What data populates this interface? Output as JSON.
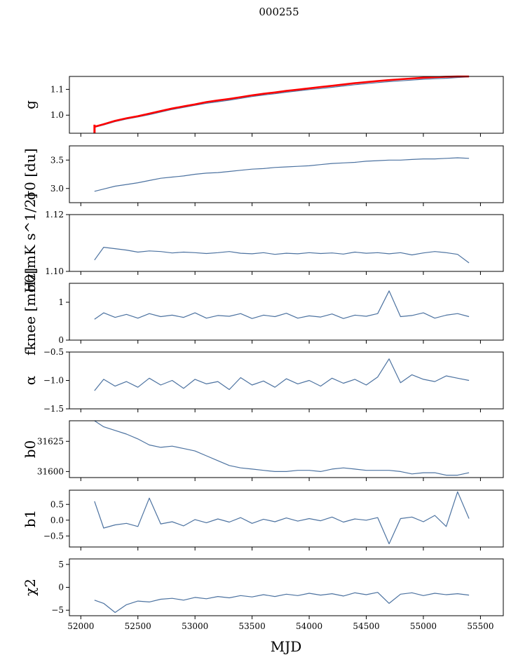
{
  "figure": {
    "suptitle": "000255"
  },
  "colors": {
    "series": "#4c72a0",
    "highlight": "#ff0000",
    "axis": "#000000",
    "background": "#ffffff"
  },
  "chart_data": [
    {
      "type": "line",
      "ylabel": "g",
      "xlim": [
        51900,
        55700
      ],
      "ylim": [
        0.93,
        1.15
      ],
      "yticks": [
        1.0,
        1.1
      ],
      "ytick_labels": [
        "1.0",
        "1.1"
      ],
      "grid": false,
      "x": [
        52120,
        52200,
        52300,
        52400,
        52500,
        52600,
        52700,
        52800,
        52900,
        53000,
        53100,
        53200,
        53300,
        53400,
        53500,
        53600,
        53700,
        53800,
        53900,
        54000,
        54100,
        54200,
        54300,
        54400,
        54500,
        54600,
        54700,
        54800,
        54900,
        55000,
        55100,
        55200,
        55300,
        55400
      ],
      "series": [
        {
          "values": [
            0.953,
            0.962,
            0.975,
            0.985,
            0.993,
            1.002,
            1.012,
            1.022,
            1.03,
            1.038,
            1.046,
            1.052,
            1.058,
            1.065,
            1.072,
            1.078,
            1.083,
            1.089,
            1.094,
            1.099,
            1.103,
            1.108,
            1.113,
            1.118,
            1.122,
            1.126,
            1.13,
            1.133,
            1.136,
            1.139,
            1.141,
            1.143,
            1.146,
            1.148
          ],
          "color": "#4c72a0"
        },
        {
          "values": [
            0.955,
            0.965,
            0.978,
            0.988,
            0.996,
            1.006,
            1.016,
            1.026,
            1.034,
            1.042,
            1.051,
            1.057,
            1.063,
            1.07,
            1.077,
            1.083,
            1.088,
            1.094,
            1.099,
            1.104,
            1.109,
            1.114,
            1.119,
            1.124,
            1.128,
            1.132,
            1.136,
            1.139,
            1.142,
            1.145,
            1.147,
            1.149,
            1.151,
            1.153
          ],
          "color": "#ff0000"
        }
      ]
    },
    {
      "type": "line",
      "ylabel": "σ0 [du]",
      "xlim": [
        51900,
        55700
      ],
      "ylim": [
        2.75,
        3.75
      ],
      "yticks": [
        3.0,
        3.5
      ],
      "ytick_labels": [
        "3.0",
        "3.5"
      ],
      "grid": false,
      "x": [
        52120,
        52200,
        52300,
        52400,
        52500,
        52600,
        52700,
        52800,
        52900,
        53000,
        53100,
        53200,
        53300,
        53400,
        53500,
        53600,
        53700,
        53800,
        53900,
        54000,
        54100,
        54200,
        54300,
        54400,
        54500,
        54600,
        54700,
        54800,
        54900,
        55000,
        55100,
        55200,
        55300,
        55400
      ],
      "series": [
        {
          "values": [
            2.95,
            2.99,
            3.04,
            3.07,
            3.1,
            3.14,
            3.18,
            3.2,
            3.22,
            3.25,
            3.27,
            3.28,
            3.3,
            3.32,
            3.34,
            3.35,
            3.37,
            3.38,
            3.39,
            3.4,
            3.42,
            3.44,
            3.45,
            3.46,
            3.48,
            3.49,
            3.5,
            3.5,
            3.51,
            3.52,
            3.52,
            3.53,
            3.54,
            3.53
          ],
          "color": "#4c72a0"
        }
      ]
    },
    {
      "type": "line",
      "ylabel": "σ0[mK s^1/2]",
      "xlim": [
        51900,
        55700
      ],
      "ylim": [
        1.1,
        1.12
      ],
      "yticks": [
        1.1,
        1.12
      ],
      "ytick_labels": [
        "1.10",
        "1.12"
      ],
      "grid": false,
      "x": [
        52120,
        52200,
        52300,
        52400,
        52500,
        52600,
        52700,
        52800,
        52900,
        53000,
        53100,
        53200,
        53300,
        53400,
        53500,
        53600,
        53700,
        53800,
        53900,
        54000,
        54100,
        54200,
        54300,
        54400,
        54500,
        54600,
        54700,
        54800,
        54900,
        55000,
        55100,
        55200,
        55300,
        55400
      ],
      "series": [
        {
          "values": [
            1.104,
            1.1085,
            1.108,
            1.1075,
            1.1068,
            1.1072,
            1.107,
            1.1065,
            1.1068,
            1.1066,
            1.1063,
            1.1066,
            1.107,
            1.1064,
            1.1062,
            1.1066,
            1.106,
            1.1064,
            1.1062,
            1.1066,
            1.1063,
            1.1065,
            1.1061,
            1.1068,
            1.1064,
            1.1066,
            1.1062,
            1.1066,
            1.1058,
            1.1065,
            1.107,
            1.1066,
            1.106,
            1.103
          ],
          "color": "#4c72a0"
        }
      ]
    },
    {
      "type": "line",
      "ylabel": "fknee [mHz]",
      "xlim": [
        51900,
        55700
      ],
      "ylim": [
        0,
        1.5
      ],
      "yticks": [
        0,
        1
      ],
      "ytick_labels": [
        "0",
        "1"
      ],
      "grid": false,
      "x": [
        52120,
        52200,
        52300,
        52400,
        52500,
        52600,
        52700,
        52800,
        52900,
        53000,
        53100,
        53200,
        53300,
        53400,
        53500,
        53600,
        53700,
        53800,
        53900,
        54000,
        54100,
        54200,
        54300,
        54400,
        54500,
        54600,
        54700,
        54800,
        54900,
        55000,
        55100,
        55200,
        55300,
        55400
      ],
      "series": [
        {
          "values": [
            0.55,
            0.72,
            0.6,
            0.68,
            0.58,
            0.7,
            0.62,
            0.66,
            0.6,
            0.72,
            0.58,
            0.65,
            0.63,
            0.7,
            0.57,
            0.66,
            0.62,
            0.71,
            0.58,
            0.64,
            0.61,
            0.69,
            0.57,
            0.66,
            0.63,
            0.7,
            1.3,
            0.62,
            0.65,
            0.72,
            0.58,
            0.66,
            0.7,
            0.62
          ],
          "color": "#4c72a0"
        }
      ]
    },
    {
      "type": "line",
      "ylabel": "α",
      "xlim": [
        51900,
        55700
      ],
      "ylim": [
        -1.5,
        -0.5
      ],
      "yticks": [
        -1.5,
        -1.0,
        -0.5
      ],
      "ytick_labels": [
        "−1.5",
        "−1.0",
        "−0.5"
      ],
      "grid": false,
      "x": [
        52120,
        52200,
        52300,
        52400,
        52500,
        52600,
        52700,
        52800,
        52900,
        53000,
        53100,
        53200,
        53300,
        53400,
        53500,
        53600,
        53700,
        53800,
        53900,
        54000,
        54100,
        54200,
        54300,
        54400,
        54500,
        54600,
        54700,
        54800,
        54900,
        55000,
        55100,
        55200,
        55300,
        55400
      ],
      "series": [
        {
          "values": [
            -1.18,
            -0.98,
            -1.1,
            -1.02,
            -1.12,
            -0.96,
            -1.08,
            -1.0,
            -1.14,
            -0.98,
            -1.06,
            -1.02,
            -1.16,
            -0.95,
            -1.08,
            -1.01,
            -1.12,
            -0.97,
            -1.06,
            -1.0,
            -1.1,
            -0.96,
            -1.05,
            -0.98,
            -1.08,
            -0.94,
            -0.62,
            -1.04,
            -0.9,
            -0.98,
            -1.02,
            -0.92,
            -0.96,
            -1.0
          ],
          "color": "#4c72a0"
        }
      ]
    },
    {
      "type": "line",
      "ylabel": "b0",
      "xlim": [
        51900,
        55700
      ],
      "ylim": [
        31595,
        31642
      ],
      "yticks": [
        31600,
        31625
      ],
      "ytick_labels": [
        "31600",
        "31625"
      ],
      "grid": false,
      "x": [
        52120,
        52200,
        52300,
        52400,
        52500,
        52600,
        52700,
        52800,
        52900,
        53000,
        53100,
        53200,
        53300,
        53400,
        53500,
        53600,
        53700,
        53800,
        53900,
        54000,
        54100,
        54200,
        54300,
        54400,
        54500,
        54600,
        54700,
        54800,
        54900,
        55000,
        55100,
        55200,
        55300,
        55400
      ],
      "series": [
        {
          "values": [
            31642,
            31637,
            31634,
            31631,
            31627,
            31622,
            31620,
            31621,
            31619,
            31617,
            31613,
            31609,
            31605,
            31603,
            31602,
            31601,
            31600,
            31600,
            31601,
            31601,
            31600,
            31602,
            31603,
            31602,
            31601,
            31601,
            31601,
            31600,
            31598,
            31599,
            31599,
            31597,
            31597,
            31599
          ],
          "color": "#4c72a0"
        }
      ]
    },
    {
      "type": "line",
      "ylabel": "b1",
      "xlim": [
        51900,
        55700
      ],
      "ylim": [
        -0.85,
        0.95
      ],
      "yticks": [
        -0.5,
        0.0,
        0.5
      ],
      "ytick_labels": [
        "−0.5",
        "0.0",
        "0.5"
      ],
      "grid": false,
      "x": [
        52120,
        52200,
        52300,
        52400,
        52500,
        52600,
        52700,
        52800,
        52900,
        53000,
        53100,
        53200,
        53300,
        53400,
        53500,
        53600,
        53700,
        53800,
        53900,
        54000,
        54100,
        54200,
        54300,
        54400,
        54500,
        54600,
        54700,
        54800,
        54900,
        55000,
        55100,
        55200,
        55300,
        55400
      ],
      "series": [
        {
          "values": [
            0.6,
            -0.25,
            -0.15,
            -0.1,
            -0.2,
            0.7,
            -0.12,
            -0.05,
            -0.18,
            0.02,
            -0.08,
            0.04,
            -0.06,
            0.08,
            -0.1,
            0.03,
            -0.05,
            0.07,
            -0.03,
            0.05,
            -0.02,
            0.1,
            -0.06,
            0.04,
            0.0,
            0.08,
            -0.75,
            0.05,
            0.1,
            -0.05,
            0.15,
            -0.2,
            0.9,
            0.05
          ],
          "color": "#4c72a0"
        }
      ]
    },
    {
      "type": "line",
      "ylabel": "χ2",
      "xlabel": "MJD",
      "xlim": [
        51900,
        55700
      ],
      "ylim": [
        -6.2,
        6.2
      ],
      "yticks": [
        -5,
        0,
        5
      ],
      "ytick_labels": [
        "−5",
        "0",
        "5"
      ],
      "xticks": [
        52000,
        52500,
        53000,
        53500,
        54000,
        54500,
        55000,
        55500
      ],
      "xtick_labels": [
        "52000",
        "52500",
        "53000",
        "53500",
        "54000",
        "54500",
        "55000",
        "55500"
      ],
      "grid": false,
      "x": [
        52120,
        52200,
        52300,
        52400,
        52500,
        52600,
        52700,
        52800,
        52900,
        53000,
        53100,
        53200,
        53300,
        53400,
        53500,
        53600,
        53700,
        53800,
        53900,
        54000,
        54100,
        54200,
        54300,
        54400,
        54500,
        54600,
        54700,
        54800,
        54900,
        55000,
        55100,
        55200,
        55300,
        55400
      ],
      "series": [
        {
          "values": [
            -2.8,
            -3.5,
            -5.5,
            -3.8,
            -3.0,
            -3.2,
            -2.6,
            -2.4,
            -2.8,
            -2.2,
            -2.5,
            -2.0,
            -2.3,
            -1.8,
            -2.1,
            -1.6,
            -2.0,
            -1.5,
            -1.8,
            -1.3,
            -1.7,
            -1.4,
            -1.9,
            -1.2,
            -1.6,
            -1.1,
            -3.5,
            -1.5,
            -1.2,
            -1.8,
            -1.3,
            -1.6,
            -1.4,
            -1.7
          ],
          "color": "#4c72a0"
        }
      ]
    }
  ]
}
